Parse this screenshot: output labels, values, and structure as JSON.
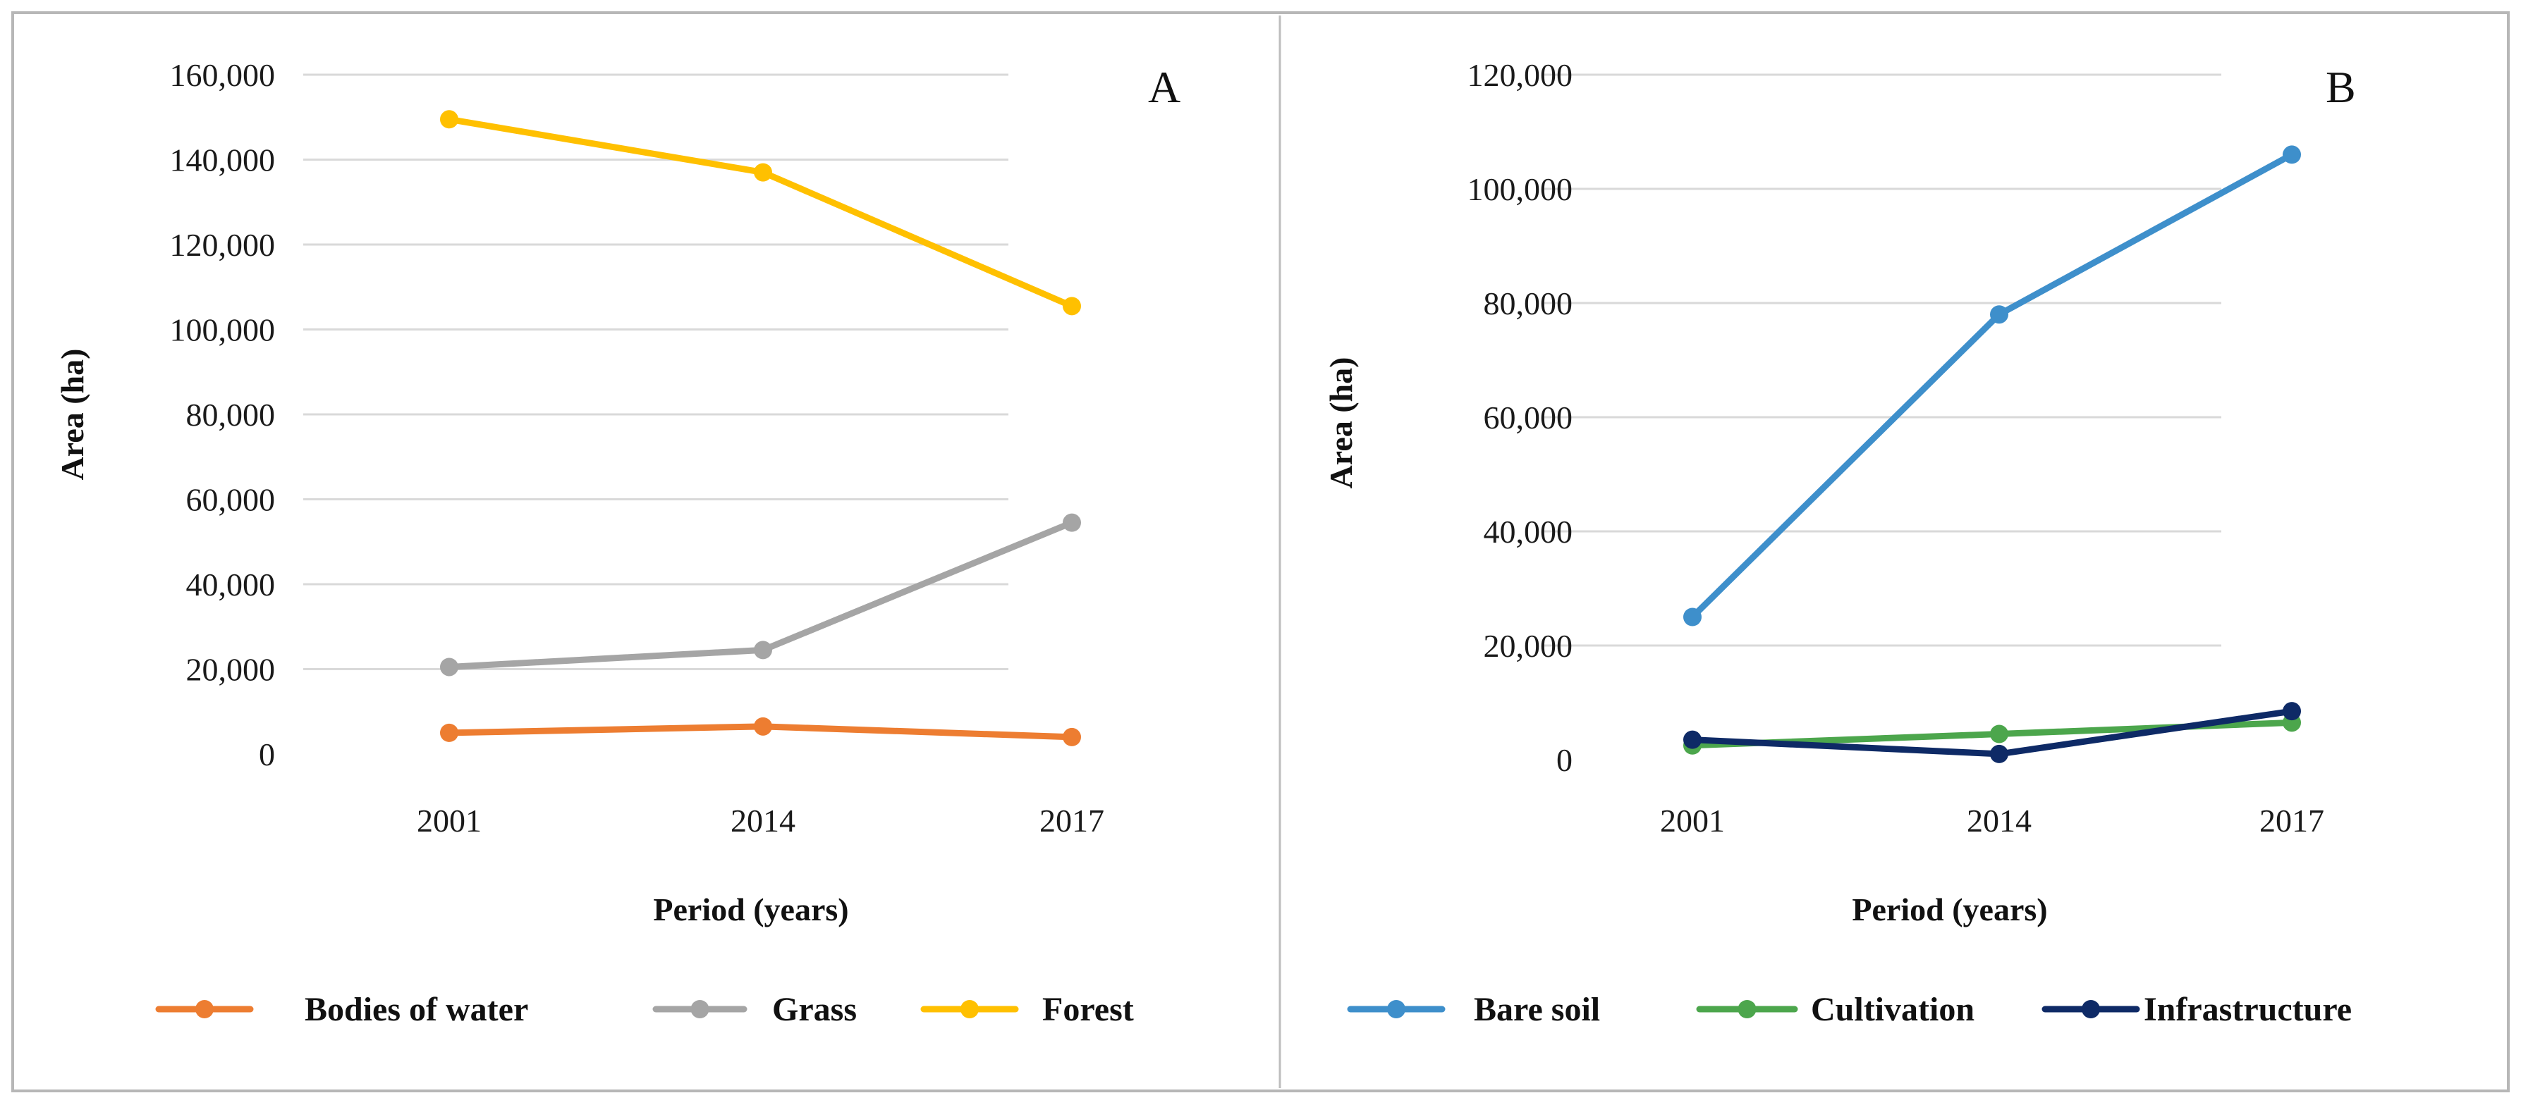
{
  "chart_data": [
    {
      "type": "line",
      "panel_label": "A",
      "categories": [
        "2001",
        "2014",
        "2017"
      ],
      "series": [
        {
          "name": "Bodies of water",
          "color": "#ED7D31",
          "values": [
            5000,
            6500,
            4000
          ]
        },
        {
          "name": "Grass",
          "color": "#A5A5A5",
          "values": [
            20500,
            24500,
            54500
          ]
        },
        {
          "name": "Forest",
          "color": "#FFC000",
          "values": [
            149500,
            137000,
            105500
          ]
        }
      ],
      "xlabel": "Period (years)",
      "ylabel": "Area (ha)",
      "ylim": [
        0,
        160000
      ],
      "yticks": [
        "0",
        "20,000",
        "40,000",
        "60,000",
        "80,000",
        "100,000",
        "120,000",
        "140,000",
        "160,000"
      ],
      "grid": true,
      "legend_position": "bottom"
    },
    {
      "type": "line",
      "panel_label": "B",
      "categories": [
        "2001",
        "2014",
        "2017"
      ],
      "series": [
        {
          "name": "Bare soil",
          "color": "#3E8FCB",
          "values": [
            25000,
            78000,
            106000
          ]
        },
        {
          "name": "Cultivation",
          "color": "#4CA64C",
          "values": [
            2500,
            4500,
            6500
          ]
        },
        {
          "name": "Infrastructure",
          "color": "#0E2A66",
          "values": [
            3500,
            1000,
            8500
          ]
        }
      ],
      "xlabel": "Period (years)",
      "ylabel": "Area (ha)",
      "ylim": [
        0,
        120000
      ],
      "yticks": [
        "0",
        "20,000",
        "40,000",
        "60,000",
        "80,000",
        "100,000",
        "120,000"
      ],
      "grid": true,
      "legend_position": "bottom"
    }
  ]
}
